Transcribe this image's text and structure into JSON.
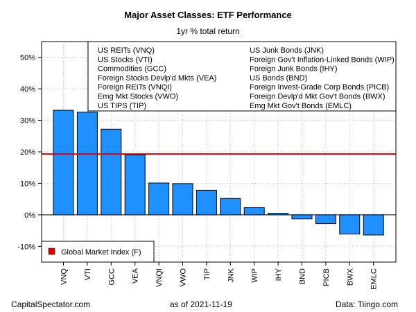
{
  "chart_data": {
    "type": "bar",
    "title": "Major Asset Classes: ETF Performance",
    "subtitle": "1yr % total return",
    "categories": [
      "VNQ",
      "VTI",
      "GCC",
      "VEA",
      "VNQI",
      "VWO",
      "TIP",
      "JNK",
      "WIP",
      "IHY",
      "BND",
      "PICB",
      "BWX",
      "EMLC"
    ],
    "values": [
      33.2,
      32.6,
      27.2,
      19.0,
      10.1,
      9.9,
      7.8,
      5.2,
      2.3,
      0.5,
      -1.3,
      -2.8,
      -6.1,
      -6.4
    ],
    "ylim": [
      -15,
      55
    ],
    "yticks": [
      -10,
      0,
      10,
      20,
      30,
      40,
      50
    ],
    "ytick_labels": [
      "-10%",
      "0%",
      "10%",
      "20%",
      "30%",
      "40%",
      "50%"
    ],
    "grid": true,
    "reference_line": {
      "value": 19.3,
      "color": "#e00000",
      "label": "Global Market Index (F)"
    },
    "bar_color": "#1e90ff",
    "legend_items": [
      "US REITs (VNQ)",
      "US Stocks (VTI)",
      "Commodities (GCC)",
      "Foreign Stocks Devlp'd Mkts (VEA)",
      "Foreign REITs (VNQI)",
      "Emg Mkt Stocks (VWO)",
      "US TIPS (TIP)",
      "US Junk Bonds (JNK)",
      "Foreign Gov't Inflation-Linked Bonds (WIP)",
      "Foreign Junk Bonds (IHY)",
      "US Bonds (BND)",
      "Foreign Invest-Grade Corp Bonds (PICB)",
      "Foreign Devlp'd Mkt Gov't Bonds (BWX)",
      "Emg Mkt Gov't Bonds (EMLC)"
    ],
    "legend_position": "top-right",
    "ref_legend_position": "bottom-left"
  },
  "footer": {
    "left": "CapitalSpectator.com",
    "center": "as of   2021-11-19",
    "right": "Data: Tiingo.com"
  }
}
